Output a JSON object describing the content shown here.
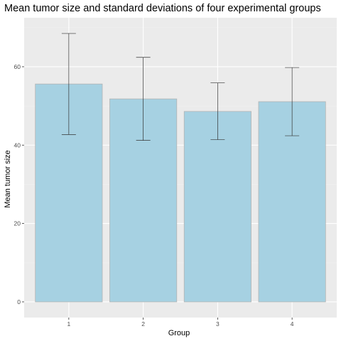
{
  "chart_data": {
    "type": "bar",
    "title": "Mean tumor size and standard deviations of four experimental groups",
    "xlabel": "Group",
    "ylabel": "Mean tumor size",
    "categories": [
      "1",
      "2",
      "3",
      "4"
    ],
    "values": [
      55.6,
      51.8,
      48.6,
      51.1
    ],
    "error_low": [
      42.7,
      41.2,
      41.4,
      42.4
    ],
    "error_high": [
      68.5,
      62.4,
      55.9,
      59.8
    ],
    "ylim": [
      -4,
      72.5
    ],
    "yticks": [
      0,
      20,
      40,
      60
    ],
    "ytick_labels": [
      "0",
      "20",
      "40",
      "60"
    ],
    "grid": true,
    "colors": {
      "bar_fill": "#a6d1e2",
      "bar_stroke": "#b4b4b4",
      "panel": "#ebebeb",
      "grid_major": "#ffffff",
      "grid_minor": "#f2f2f2",
      "error": "#333333",
      "tick": "#333333"
    }
  }
}
